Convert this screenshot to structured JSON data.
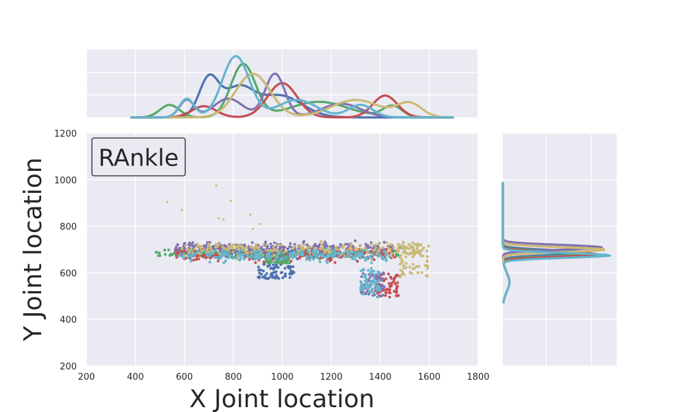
{
  "chart_data": {
    "type": "scatter",
    "annotation": "RAnkle",
    "xlabel": "X Joint location",
    "ylabel": "Y Joint location",
    "xlim": [
      200,
      1800
    ],
    "ylim": [
      200,
      1200
    ],
    "x_ticks": [
      200,
      400,
      600,
      800,
      1000,
      1200,
      1400,
      1600,
      1800
    ],
    "y_ticks": [
      200,
      400,
      600,
      800,
      1000,
      1200
    ],
    "x_tick_labels": [
      "200",
      "400",
      "600",
      "800",
      "1000",
      "1200",
      "1400",
      "1600",
      "1800"
    ],
    "y_tick_labels": [
      "200",
      "400",
      "600",
      "800",
      "1000",
      "1200"
    ],
    "grid": true,
    "background": "#EAEAF2",
    "series": [
      {
        "color": "#4C72B0",
        "x_range": [
          560,
          1240
        ],
        "y_center": 688,
        "y_spread": 18,
        "tail": {
          "x": [
            900,
            1050
          ],
          "y": [
            575,
            640
          ]
        },
        "kde_x_peaks": [
          {
            "x": 700,
            "w": 40,
            "h": 0.62
          },
          {
            "x": 820,
            "w": 60,
            "h": 0.45
          },
          {
            "x": 990,
            "w": 90,
            "h": 0.35
          }
        ]
      },
      {
        "color": "#55A868",
        "x_range": [
          480,
          1480
        ],
        "y_center": 683,
        "y_spread": 14,
        "tail": {
          "x": [
            930,
            1030
          ],
          "y": [
            640,
            670
          ]
        },
        "kde_x_peaks": [
          {
            "x": 540,
            "w": 40,
            "h": 0.2
          },
          {
            "x": 840,
            "w": 50,
            "h": 0.85
          },
          {
            "x": 1150,
            "w": 120,
            "h": 0.25
          },
          {
            "x": 1450,
            "w": 40,
            "h": 0.18
          }
        ]
      },
      {
        "color": "#C44E52",
        "x_range": [
          560,
          1470
        ],
        "y_center": 680,
        "y_spread": 20,
        "tail": {
          "x": [
            1380,
            1480
          ],
          "y": [
            495,
            600
          ]
        },
        "kde_x_peaks": [
          {
            "x": 680,
            "w": 50,
            "h": 0.18
          },
          {
            "x": 1000,
            "w": 60,
            "h": 0.55
          },
          {
            "x": 1420,
            "w": 50,
            "h": 0.35
          }
        ]
      },
      {
        "color": "#8172B2",
        "x_range": [
          560,
          1450
        ],
        "y_center": 710,
        "y_spread": 16,
        "tail": {
          "x": [
            1320,
            1420
          ],
          "y": [
            500,
            600
          ]
        },
        "kde_x_peaks": [
          {
            "x": 610,
            "w": 30,
            "h": 0.28
          },
          {
            "x": 780,
            "w": 60,
            "h": 0.3
          },
          {
            "x": 970,
            "w": 40,
            "h": 0.7
          },
          {
            "x": 1240,
            "w": 80,
            "h": 0.22
          }
        ]
      },
      {
        "color": "#CCB974",
        "x_range": [
          580,
          1560
        ],
        "y_center": 700,
        "y_spread": 20,
        "tail": {
          "x": [
            1480,
            1600
          ],
          "y": [
            580,
            740
          ]
        },
        "outliers": [
          [
            530,
            905
          ],
          [
            590,
            870
          ],
          [
            730,
            975
          ],
          [
            740,
            835
          ],
          [
            760,
            830
          ],
          [
            790,
            910
          ],
          [
            870,
            850
          ],
          [
            880,
            790
          ],
          [
            910,
            810
          ]
        ],
        "kde_x_peaks": [
          {
            "x": 880,
            "w": 70,
            "h": 0.7
          },
          {
            "x": 1300,
            "w": 100,
            "h": 0.28
          },
          {
            "x": 1520,
            "w": 50,
            "h": 0.22
          }
        ]
      },
      {
        "color": "#64B5CD",
        "x_range": [
          570,
          1440
        ],
        "y_center": 675,
        "y_spread": 18,
        "tail": {
          "x": [
            1320,
            1400
          ],
          "y": [
            495,
            620
          ]
        },
        "kde_x_peaks": [
          {
            "x": 610,
            "w": 30,
            "h": 0.3
          },
          {
            "x": 810,
            "w": 55,
            "h": 0.98
          },
          {
            "x": 1060,
            "w": 80,
            "h": 0.28
          },
          {
            "x": 1320,
            "w": 50,
            "h": 0.2
          }
        ]
      }
    ]
  }
}
